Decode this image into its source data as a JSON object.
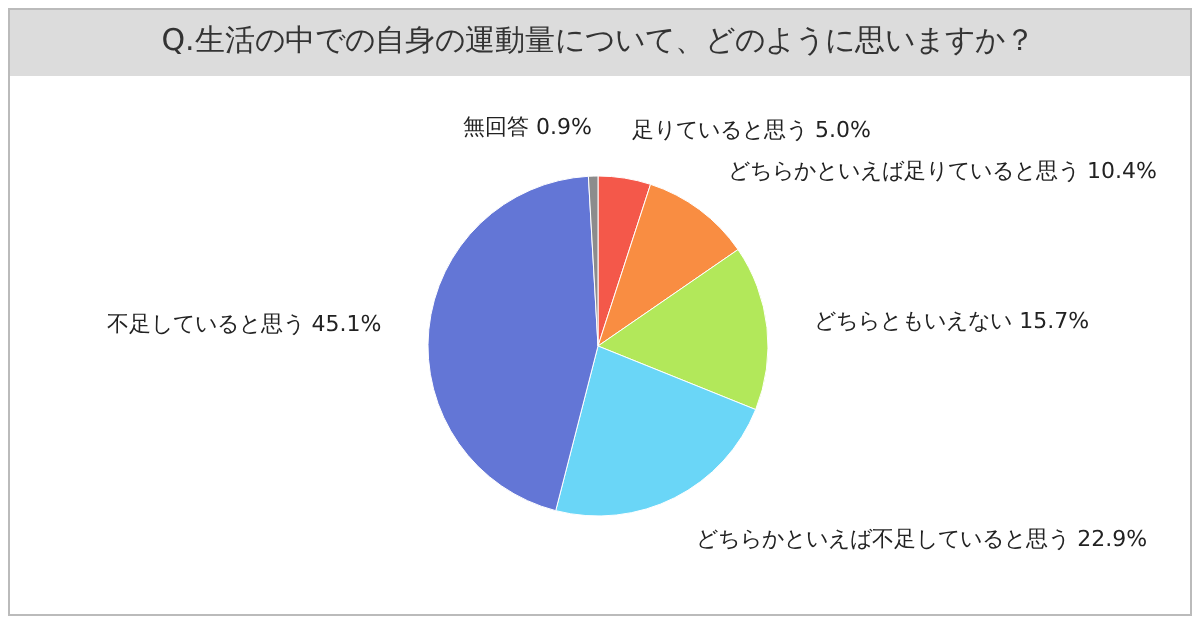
{
  "chart_data": {
    "type": "pie",
    "title": "Q.生活の中での自身の運動量について、どのように思いますか？",
    "categories": [
      "足りていると思う",
      "どちらかといえば足りていると思う",
      "どちらともいえない",
      "どちらかといえば不足していると思う",
      "不足していると思う",
      "無回答"
    ],
    "values": [
      5.0,
      10.4,
      15.7,
      22.9,
      45.1,
      0.9
    ],
    "colors": [
      "#f4584a",
      "#f98d42",
      "#b2e85a",
      "#6ad6f7",
      "#6376d6",
      "#8c8c8c"
    ],
    "value_labels": [
      "5.0%",
      "10.4%",
      "15.7%",
      "22.9%",
      "45.1%",
      "0.9%"
    ]
  }
}
